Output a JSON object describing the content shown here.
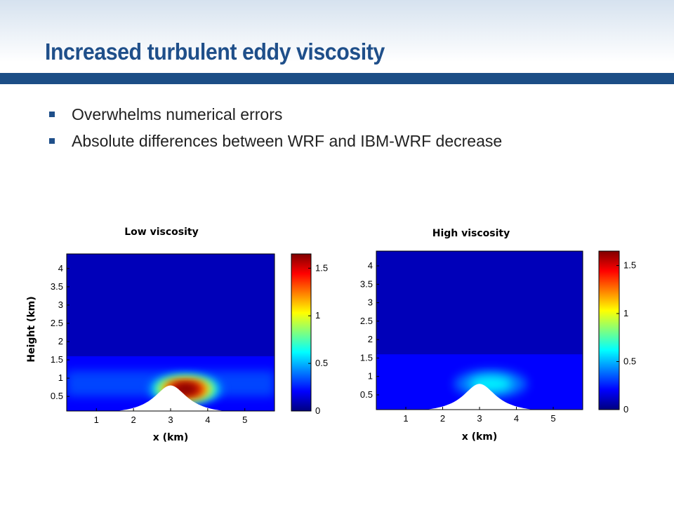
{
  "slide": {
    "title": "Increased turbulent eddy viscosity",
    "bullets": [
      "Overwhelms numerical errors",
      "Absolute differences between WRF and IBM-WRF decrease"
    ]
  },
  "colors": {
    "accent": "#1c4e86",
    "title": "#1f4f8a",
    "colormap": [
      "#00007f",
      "#0000ff",
      "#007fff",
      "#00ffff",
      "#7fff7f",
      "#ffff00",
      "#ff7f00",
      "#ff0000",
      "#7f0000"
    ]
  },
  "chart_data": [
    {
      "type": "heatmap",
      "title": "Low viscosity",
      "xlabel": "x (km)",
      "ylabel": "Height (km)",
      "xlim": [
        0.2,
        5.8
      ],
      "ylim": [
        0.1,
        4.4
      ],
      "xticks": [
        1,
        2,
        3,
        4,
        5
      ],
      "yticks": [
        0.5,
        1,
        1.5,
        2,
        2.5,
        3,
        3.5,
        4
      ],
      "colorbar": {
        "range": [
          0,
          1.65
        ],
        "ticks": [
          0,
          0.5,
          1,
          1.5
        ]
      },
      "terrain": {
        "shape": "bell-shaped hill",
        "peak_x": 3,
        "peak_height": 0.8
      },
      "features": [
        {
          "description": "maximum downstream of hill crest",
          "x": 3.4,
          "y": 0.7,
          "value": 1.6
        },
        {
          "description": "enhanced layer over hill",
          "height_range": [
            0.5,
            1.2
          ],
          "value": 0.4
        }
      ]
    },
    {
      "type": "heatmap",
      "title": "High viscosity",
      "xlabel": "x (km)",
      "ylabel": "",
      "xlim": [
        0.2,
        5.8
      ],
      "ylim": [
        0.1,
        4.4
      ],
      "xticks": [
        1,
        2,
        3,
        4,
        5
      ],
      "yticks": [
        0.5,
        1,
        1.5,
        2,
        2.5,
        3,
        3.5,
        4
      ],
      "colorbar": {
        "range": [
          0,
          1.65
        ],
        "ticks": [
          0,
          0.5,
          1,
          1.5
        ]
      },
      "terrain": {
        "shape": "bell-shaped hill",
        "peak_x": 3,
        "peak_height": 0.8
      },
      "features": [
        {
          "description": "weak maximum near hill crest",
          "x": 3.3,
          "y": 0.8,
          "value": 0.4
        }
      ]
    }
  ]
}
